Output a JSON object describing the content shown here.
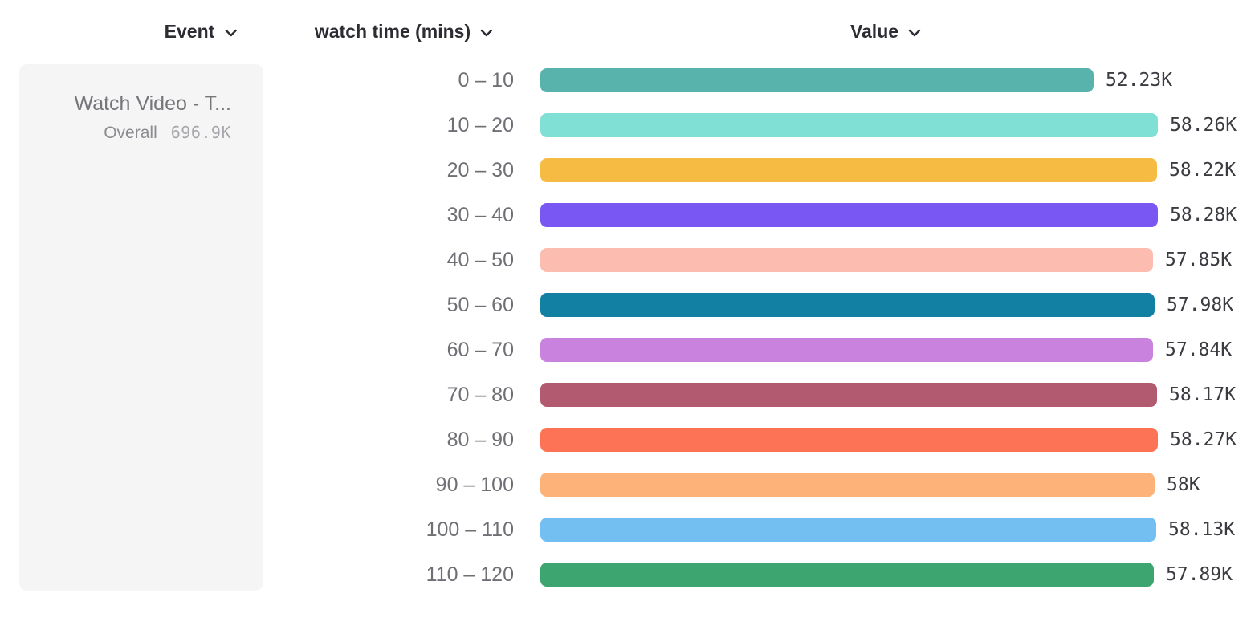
{
  "header": {
    "columns": [
      {
        "id": "event",
        "label": "Event"
      },
      {
        "id": "breakdown",
        "label": "watch time (mins)"
      },
      {
        "id": "value",
        "label": "Value"
      }
    ]
  },
  "event_panel": {
    "title": "Watch Video - T...",
    "overall_label": "Overall",
    "overall_value": "696.9K"
  },
  "chart_data": {
    "type": "bar",
    "orientation": "horizontal",
    "title": "",
    "xlabel": "Value",
    "ylabel": "watch time (mins)",
    "xlim": [
      0,
      58280
    ],
    "grid": false,
    "legend_position": "none",
    "categories": [
      "0 – 10",
      "10 – 20",
      "20 – 30",
      "30 – 40",
      "40 – 50",
      "50 – 60",
      "60 – 70",
      "70 – 80",
      "80 – 90",
      "90 – 100",
      "100 – 110",
      "110 – 120"
    ],
    "values": [
      52230,
      58260,
      58220,
      58280,
      57850,
      57980,
      57840,
      58170,
      58270,
      58000,
      58130,
      57890
    ],
    "value_labels": [
      "52.23K",
      "58.26K",
      "58.22K",
      "58.28K",
      "57.85K",
      "57.98K",
      "57.84K",
      "58.17K",
      "58.27K",
      "58K",
      "58.13K",
      "57.89K"
    ],
    "bar_colors": [
      "#57b3ab",
      "#81e0d5",
      "#f6bb42",
      "#7857f2",
      "#fdbcb0",
      "#1180a2",
      "#c982de",
      "#b25a70",
      "#fd7355",
      "#fcb278",
      "#74bff2",
      "#3da56f"
    ]
  },
  "style": {
    "chevron_color": "#2c2c33",
    "panel_bg": "#f5f5f6",
    "header_text": "#2c2c33",
    "row_label_text": "#6f6f75",
    "value_text": "#3b3b41"
  }
}
